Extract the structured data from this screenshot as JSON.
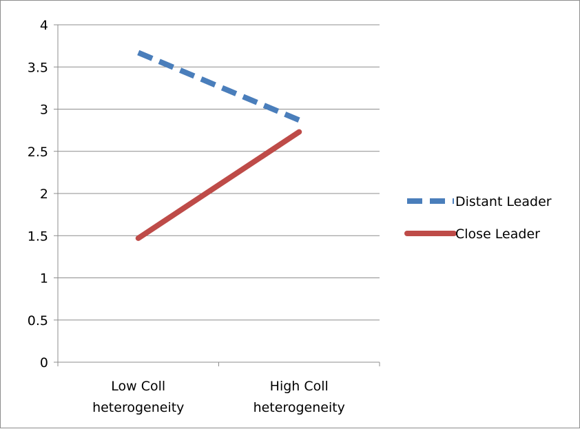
{
  "chart_data": {
    "type": "line",
    "categories": [
      [
        "Low Coll",
        "heterogeneity"
      ],
      [
        "High Coll",
        "heterogeneity"
      ]
    ],
    "series": [
      {
        "name": "Distant Leader",
        "values": [
          3.67,
          2.87
        ],
        "color": "#4a7ebb",
        "dash": "dashed"
      },
      {
        "name": "Close Leader",
        "values": [
          1.47,
          2.73
        ],
        "color": "#be4b48",
        "dash": "solid"
      }
    ],
    "y_ticks": [
      "0",
      "0.5",
      "1",
      "1.5",
      "2",
      "2.5",
      "3",
      "3.5",
      "4"
    ],
    "ylim": [
      0,
      4
    ],
    "grid": true,
    "legend_position": "right"
  }
}
